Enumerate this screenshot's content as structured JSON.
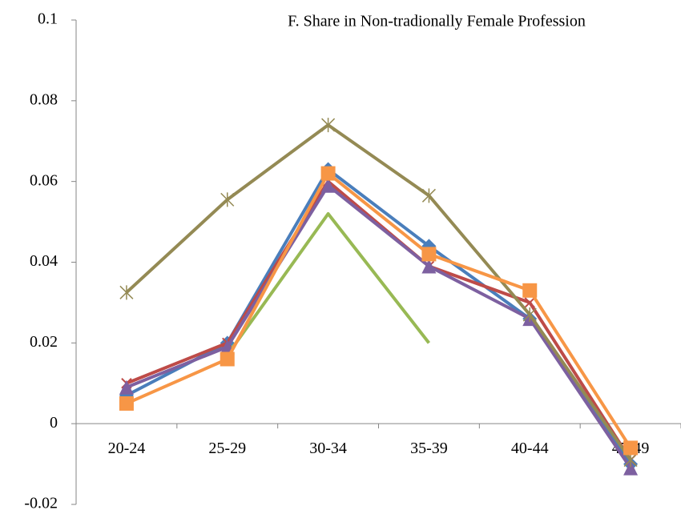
{
  "chart_data": {
    "type": "line",
    "title": "F.   Share in Non-tradionally Female Profession",
    "categories": [
      "20-24",
      "25-29",
      "30-34",
      "35-39",
      "40-44",
      "45-49"
    ],
    "series": [
      {
        "color": "#4a7ebb",
        "marker": "diamond",
        "values": [
          0.007,
          0.02,
          0.063,
          0.044,
          0.026,
          -0.01
        ]
      },
      {
        "color": "#be4b48",
        "marker": "x",
        "values": [
          0.01,
          0.02,
          0.06,
          0.039,
          0.03,
          -0.009
        ]
      },
      {
        "color": "#98b954",
        "marker": "none",
        "values": [
          null,
          0.017,
          0.052,
          0.02,
          null,
          null
        ]
      },
      {
        "color": "#7d60a0",
        "marker": "triangle",
        "values": [
          0.009,
          0.019,
          0.059,
          0.039,
          0.026,
          -0.011
        ]
      },
      {
        "color": "#948a54",
        "marker": "star",
        "values": [
          0.0325,
          0.0555,
          0.074,
          0.0565,
          0.027,
          -0.009
        ]
      },
      {
        "color": "#f79646",
        "marker": "square",
        "values": [
          0.005,
          0.016,
          0.062,
          0.042,
          0.033,
          -0.006
        ]
      }
    ],
    "ylim": [
      -0.02,
      0.1
    ],
    "yticks": [
      -0.02,
      0,
      0.02,
      0.04,
      0.06,
      0.08,
      0.1
    ],
    "grid": false
  }
}
